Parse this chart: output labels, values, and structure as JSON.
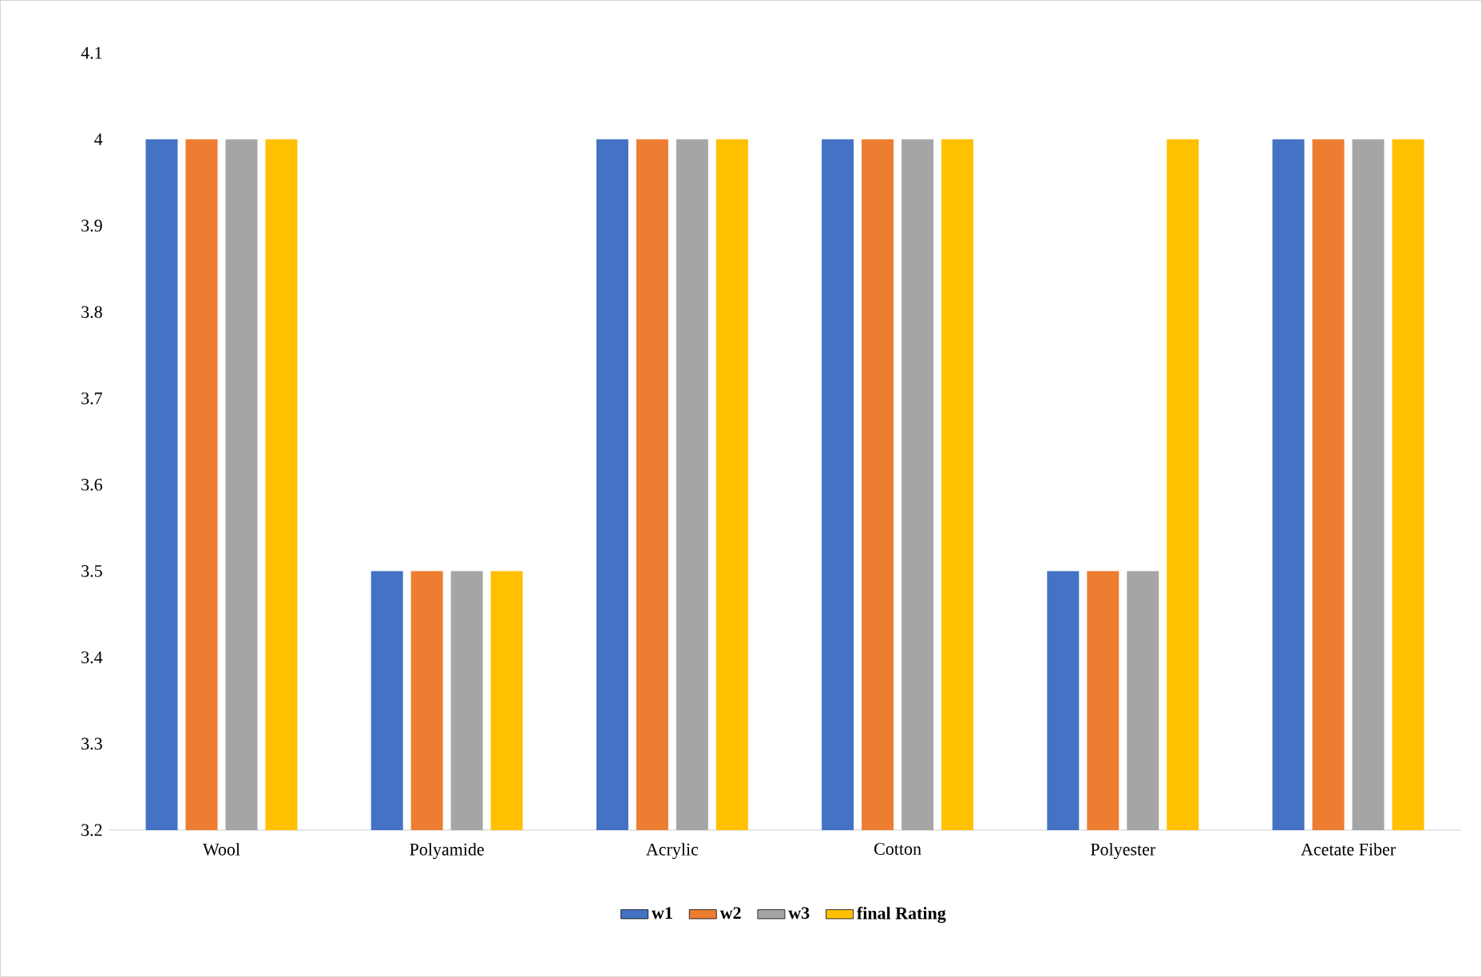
{
  "chart_data": {
    "type": "bar",
    "categories": [
      "Wool",
      "Polyamide",
      "Acrylic",
      "Cotton",
      "Polyester",
      "Acetate Fiber"
    ],
    "series": [
      {
        "name": "w1",
        "color": "#4472c4",
        "values": [
          4,
          3.5,
          4,
          4,
          3.5,
          4
        ]
      },
      {
        "name": "w2",
        "color": "#ed7d31",
        "values": [
          4,
          3.5,
          4,
          4,
          3.5,
          4
        ]
      },
      {
        "name": "w3",
        "color": "#a5a5a5",
        "values": [
          4,
          3.5,
          4,
          4,
          3.5,
          4
        ]
      },
      {
        "name": "final Rating",
        "color": "#ffc000",
        "values": [
          4,
          3.5,
          4,
          4,
          4,
          4
        ]
      }
    ],
    "ylim": [
      3.2,
      4.1
    ],
    "yticks": [
      3.2,
      3.3,
      3.4,
      3.5,
      3.6,
      3.7,
      3.8,
      3.9,
      4,
      4.1
    ],
    "grid": false,
    "legend": "bottom"
  }
}
